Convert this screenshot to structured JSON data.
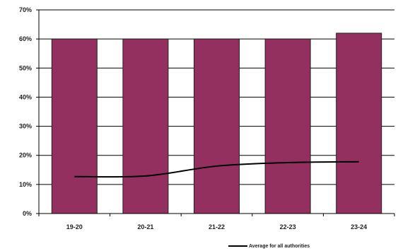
{
  "chart_data": {
    "type": "bar",
    "categories": [
      "19-20",
      "20-21",
      "21-22",
      "22-23",
      "23-24"
    ],
    "series": [
      {
        "type": "bar",
        "values": [
          60,
          60,
          60,
          60,
          62
        ],
        "color": "#93305f"
      },
      {
        "name": "Average for all authorities",
        "type": "line",
        "values": [
          12.7,
          12.9,
          16.3,
          17.5,
          17.8
        ],
        "color": "#000000"
      }
    ],
    "y_ticks": [
      "0%",
      "10%",
      "20%",
      "30%",
      "40%",
      "50%",
      "60%",
      "70%"
    ],
    "ylim": [
      0,
      70
    ],
    "grid": true,
    "legend_position": "bottom-right"
  }
}
